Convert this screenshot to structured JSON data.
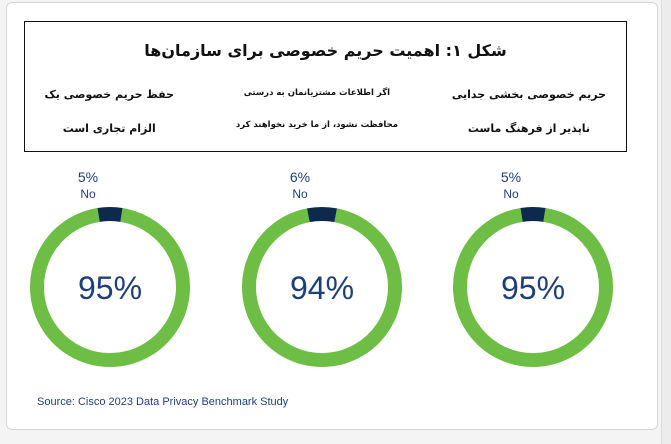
{
  "header": {
    "title": "شکل ۱: اهمیت حریم خصوصی برای سازمان‌ها",
    "columns": [
      {
        "line1": "حریم خصوصی بخشی جدایی",
        "line2": "ناپذیر از فرهنگ ماست"
      },
      {
        "line1": "اگر اطلاعات مشتریانمان به درستی",
        "line2": "محافظت نشود، از ما خرید نخواهند کرد"
      },
      {
        "line1": "حفظ حریم خصوصی یک",
        "line2": "الزام تجاری است"
      }
    ]
  },
  "chart_data": {
    "type": "pie",
    "charts": [
      {
        "center_label": "95%",
        "slice_label": "5%",
        "slice_name": "No",
        "yes": 95,
        "no": 5
      },
      {
        "center_label": "94%",
        "slice_label": "6%",
        "slice_name": "No",
        "yes": 94,
        "no": 6
      },
      {
        "center_label": "95%",
        "slice_label": "5%",
        "slice_name": "No",
        "yes": 95,
        "no": 5
      }
    ],
    "colors": {
      "yes": "#6ebd45",
      "no": "#0d2a4e"
    }
  },
  "source": "Source: Cisco 2023 Data Privacy Benchmark Study"
}
